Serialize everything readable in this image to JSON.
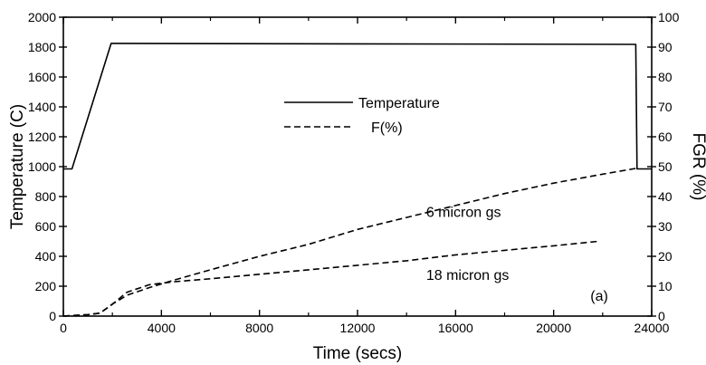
{
  "chart_data": {
    "type": "line",
    "xlabel": "Time (secs)",
    "ylabel_left": "Temperature (C)",
    "ylabel_right": "FGR (%)",
    "xlim": [
      0,
      24000
    ],
    "ylim_left": [
      0,
      2000
    ],
    "ylim_right": [
      0,
      100
    ],
    "x_ticks": [
      0,
      4000,
      8000,
      12000,
      16000,
      20000,
      24000
    ],
    "x_tick_labels": [
      "0",
      "4000",
      "8000",
      "12000",
      "16000",
      "20000",
      "24000"
    ],
    "y_left_ticks": [
      0,
      200,
      400,
      600,
      800,
      1000,
      1200,
      1400,
      1600,
      1800,
      2000
    ],
    "y_left_tick_labels": [
      "0",
      "200",
      "400",
      "600",
      "800",
      "1000",
      "1200",
      "1400",
      "1600",
      "1800",
      "2000"
    ],
    "y_right_ticks": [
      0,
      10,
      20,
      30,
      40,
      50,
      60,
      70,
      80,
      90,
      100
    ],
    "y_right_tick_labels": [
      "0",
      "10",
      "20",
      "30",
      "40",
      "50",
      "60",
      "70",
      "80",
      "90",
      "100"
    ],
    "grid": false,
    "legend": {
      "placement": "center",
      "entries": [
        {
          "label": "Temperature",
          "style": "solid"
        },
        {
          "label": "F(%)",
          "style": "dashed"
        }
      ]
    },
    "series": [
      {
        "axis": "left",
        "style": "solid",
        "x": [
          0,
          350,
          1950,
          23350,
          23400,
          24000
        ],
        "y": [
          985,
          985,
          1825,
          1818,
          985,
          985
        ]
      },
      {
        "axis": "right",
        "style": "dashed",
        "label": "6 micron gs",
        "x": [
          0,
          1000,
          1500,
          2000,
          2600,
          3500,
          4500,
          6000,
          8000,
          10000,
          12000,
          14000,
          16000,
          18000,
          20000,
          22000,
          23400
        ],
        "y": [
          0,
          0.5,
          1,
          4,
          7,
          9.5,
          12,
          15.5,
          20,
          24,
          29,
          33,
          37,
          41,
          44.5,
          47.5,
          49.5
        ]
      },
      {
        "axis": "right",
        "style": "dashed",
        "label": "18 micron gs",
        "x": [
          0,
          1000,
          1500,
          2000,
          2600,
          3500,
          4500,
          6000,
          8000,
          10000,
          12000,
          14000,
          16000,
          18000,
          20000,
          21800
        ],
        "y": [
          0,
          0.5,
          1,
          4,
          8,
          10.5,
          11.5,
          12.5,
          14,
          15.5,
          17,
          18.5,
          20.5,
          22,
          23.5,
          25
        ]
      }
    ],
    "annotations": [
      {
        "text": "6 micron gs",
        "x": 14800,
        "y_right": 35
      },
      {
        "text": "18 micron gs",
        "x": 14800,
        "y_right": 14
      },
      {
        "text": "(a)",
        "x": 21500,
        "y_right": 7
      }
    ]
  }
}
